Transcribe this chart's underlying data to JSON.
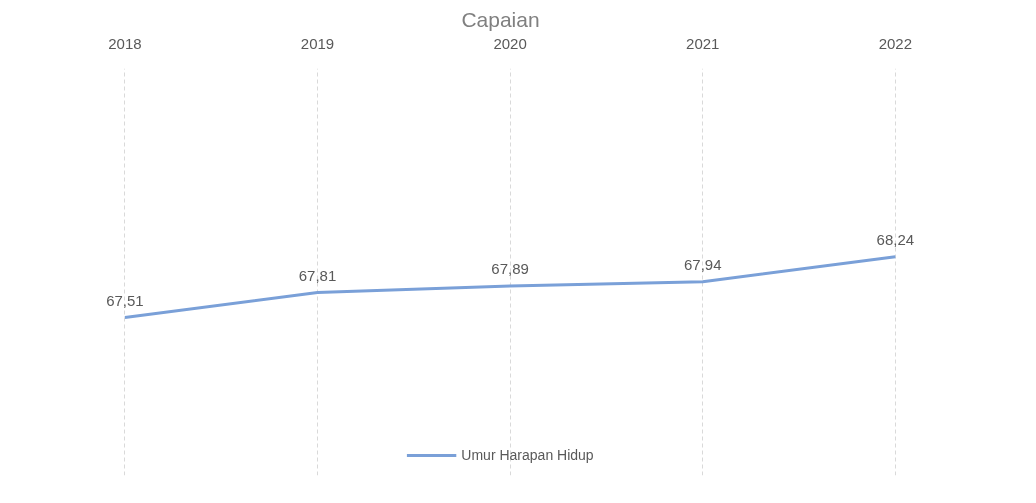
{
  "chart_data": {
    "type": "line",
    "title": "Capaian",
    "categories": [
      "2018",
      "2019",
      "2020",
      "2021",
      "2022"
    ],
    "series": [
      {
        "name": "Umur Harapan Hidup",
        "color": "#7aa0d8",
        "values": [
          67.51,
          67.81,
          67.89,
          67.94,
          68.24
        ],
        "value_labels": [
          "67,51",
          "67,81",
          "67,89",
          "67,94",
          "68,24"
        ]
      }
    ],
    "grid": "x",
    "legend": "bottom",
    "tick_labels": "x",
    "line_style": "solid",
    "marker": "none"
  }
}
